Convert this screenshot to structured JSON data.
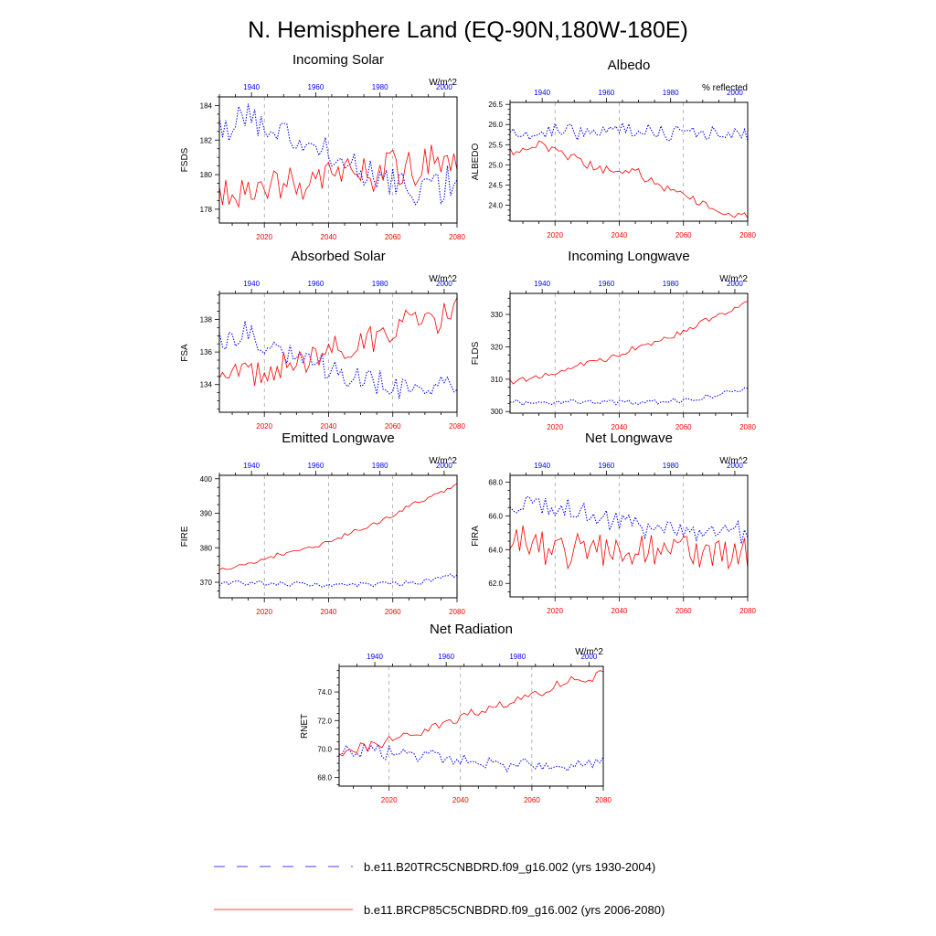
{
  "suptitle": "N. Hemisphere Land (EQ-90N,180W-180E)",
  "colors": {
    "historical": "#0000ff",
    "future": "#ff0000",
    "grid": "#888888",
    "axis": "#000000"
  },
  "legend": {
    "historical": "b.e11.B20TRC5CNBDRD.f09_g16.002 (yrs 1930-2004)",
    "future": "b.e11.BRCP85C5CNBDRD.f09_g16.002 (yrs 2006-2080)"
  },
  "chart_data": [
    {
      "type": "line",
      "title": "Incoming Solar",
      "units": "W/m^2",
      "ylabel": "FSDS",
      "ylim": [
        177.2,
        184.5
      ],
      "yticks": [
        178,
        180,
        182,
        184
      ],
      "ytick_labels": [
        "178",
        "180",
        "182",
        "184"
      ],
      "xlim_top": [
        1930,
        2004
      ],
      "xticks_top": [
        1940,
        1960,
        1980,
        2000
      ],
      "xlim_bottom": [
        2006,
        2080
      ],
      "xticks_bottom": [
        2020,
        2040,
        2060,
        2080
      ],
      "series": [
        {
          "name": "b.e11.B20TRC5CNBDRD.f09_g16.002",
          "axis": "top",
          "style": "dotted",
          "x_start": 1930,
          "anchors": [
            [
              1930,
              182.3
            ],
            [
              1937,
              183.8
            ],
            [
              1942,
              183.0
            ],
            [
              1950,
              182.6
            ],
            [
              1958,
              181.7
            ],
            [
              1966,
              180.8
            ],
            [
              1975,
              180.1
            ],
            [
              1985,
              179.6
            ],
            [
              1995,
              179.3
            ],
            [
              2004,
              179.4
            ]
          ],
          "amplitude": 0.9,
          "seed": 11
        },
        {
          "name": "b.e11.BRCP85C5CNBDRD.f09_g16.002",
          "axis": "bottom",
          "style": "solid",
          "x_start": 2006,
          "anchors": [
            [
              2006,
              179.3
            ],
            [
              2020,
              179.4
            ],
            [
              2030,
              179.3
            ],
            [
              2040,
              179.9
            ],
            [
              2050,
              180.1
            ],
            [
              2060,
              180.4
            ],
            [
              2070,
              180.7
            ],
            [
              2080,
              181.0
            ]
          ],
          "amplitude": 1.1,
          "seed": 12
        }
      ]
    },
    {
      "type": "line",
      "title": "Albedo",
      "units": "% reflected",
      "ylabel": "ALBEDO",
      "ylim": [
        23.6,
        26.55
      ],
      "yticks": [
        24.0,
        24.5,
        25.0,
        25.5,
        26.0,
        26.5
      ],
      "ytick_labels": [
        "24.0",
        "24.5",
        "25.0",
        "25.5",
        "26.0",
        "26.5"
      ],
      "xlim_top": [
        1930,
        2004
      ],
      "xticks_top": [
        1940,
        1960,
        1980,
        2000
      ],
      "xlim_bottom": [
        2006,
        2080
      ],
      "xticks_bottom": [
        2020,
        2040,
        2060,
        2080
      ],
      "series": [
        {
          "name": "b.e11.B20TRC5CNBDRD.f09_g16.002",
          "axis": "top",
          "style": "dotted",
          "x_start": 1930,
          "anchors": [
            [
              1930,
              25.8
            ],
            [
              1945,
              25.8
            ],
            [
              1960,
              25.9
            ],
            [
              1975,
              25.8
            ],
            [
              1990,
              25.8
            ],
            [
              2004,
              25.7
            ]
          ],
          "amplitude": 0.18,
          "seed": 21
        },
        {
          "name": "b.e11.BRCP85C5CNBDRD.f09_g16.002",
          "axis": "bottom",
          "style": "solid",
          "x_start": 2006,
          "anchors": [
            [
              2006,
              25.3
            ],
            [
              2015,
              25.5
            ],
            [
              2025,
              25.2
            ],
            [
              2035,
              24.9
            ],
            [
              2045,
              24.8
            ],
            [
              2055,
              24.4
            ],
            [
              2065,
              24.1
            ],
            [
              2072,
              23.9
            ],
            [
              2080,
              23.7
            ]
          ],
          "amplitude": 0.12,
          "seed": 22
        }
      ]
    },
    {
      "type": "line",
      "title": "Absorbed Solar",
      "units": "W/m^2",
      "ylabel": "FSA",
      "ylim": [
        132.3,
        139.6
      ],
      "yticks": [
        134,
        136,
        138
      ],
      "ytick_labels": [
        "134",
        "136",
        "138"
      ],
      "xlim_top": [
        1930,
        2004
      ],
      "xticks_top": [
        1940,
        1960,
        1980,
        2000
      ],
      "xlim_bottom": [
        2006,
        2080
      ],
      "xticks_bottom": [
        2020,
        2040,
        2060,
        2080
      ],
      "series": [
        {
          "name": "b.e11.B20TRC5CNBDRD.f09_g16.002",
          "axis": "top",
          "style": "dotted",
          "x_start": 1930,
          "anchors": [
            [
              1930,
              136.5
            ],
            [
              1937,
              137.3
            ],
            [
              1945,
              136.4
            ],
            [
              1955,
              135.7
            ],
            [
              1965,
              135.0
            ],
            [
              1975,
              134.3
            ],
            [
              1985,
              133.9
            ],
            [
              1995,
              133.7
            ],
            [
              2004,
              133.6
            ]
          ],
          "amplitude": 0.7,
          "seed": 31
        },
        {
          "name": "b.e11.BRCP85C5CNBDRD.f09_g16.002",
          "axis": "bottom",
          "style": "solid",
          "x_start": 2006,
          "anchors": [
            [
              2006,
              134.5
            ],
            [
              2015,
              134.5
            ],
            [
              2025,
              135.0
            ],
            [
              2035,
              135.6
            ],
            [
              2045,
              136.3
            ],
            [
              2055,
              137.0
            ],
            [
              2065,
              137.7
            ],
            [
              2075,
              138.1
            ],
            [
              2080,
              138.9
            ]
          ],
          "amplitude": 0.8,
          "seed": 32
        }
      ]
    },
    {
      "type": "line",
      "title": "Incoming Longwave",
      "units": "W/m^2",
      "ylabel": "FLDS",
      "ylim": [
        299.5,
        336.5
      ],
      "yticks": [
        300,
        310,
        320,
        330
      ],
      "ytick_labels": [
        "300",
        "310",
        "320",
        "330"
      ],
      "xlim_top": [
        1930,
        2004
      ],
      "xticks_top": [
        1940,
        1960,
        1980,
        2000
      ],
      "xlim_bottom": [
        2006,
        2080
      ],
      "xticks_bottom": [
        2020,
        2040,
        2060,
        2080
      ],
      "series": [
        {
          "name": "b.e11.B20TRC5CNBDRD.f09_g16.002",
          "axis": "top",
          "style": "dotted",
          "x_start": 1930,
          "anchors": [
            [
              1930,
              303.0
            ],
            [
              1950,
              302.9
            ],
            [
              1970,
              302.7
            ],
            [
              1985,
              303.6
            ],
            [
              1995,
              305.3
            ],
            [
              2004,
              307.3
            ]
          ],
          "amplitude": 0.8,
          "seed": 41
        },
        {
          "name": "b.e11.BRCP85C5CNBDRD.f09_g16.002",
          "axis": "bottom",
          "style": "solid",
          "x_start": 2006,
          "anchors": [
            [
              2006,
              309.0
            ],
            [
              2015,
              310.5
            ],
            [
              2025,
              313.5
            ],
            [
              2035,
              316.0
            ],
            [
              2045,
              319.5
            ],
            [
              2055,
              322.5
            ],
            [
              2065,
              327.0
            ],
            [
              2075,
              331.5
            ],
            [
              2080,
              334.5
            ]
          ],
          "amplitude": 0.9,
          "seed": 42
        }
      ]
    },
    {
      "type": "line",
      "title": "Emitted Longwave",
      "units": "W/m^2",
      "ylabel": "FIRE",
      "ylim": [
        365.5,
        401.0
      ],
      "yticks": [
        370,
        380,
        390,
        400
      ],
      "ytick_labels": [
        "370",
        "380",
        "390",
        "400"
      ],
      "xlim_top": [
        1930,
        2004
      ],
      "xticks_top": [
        1940,
        1960,
        1980,
        2000
      ],
      "xlim_bottom": [
        2006,
        2080
      ],
      "xticks_bottom": [
        2020,
        2040,
        2060,
        2080
      ],
      "series": [
        {
          "name": "b.e11.B20TRC5CNBDRD.f09_g16.002",
          "axis": "top",
          "style": "dotted",
          "x_start": 1930,
          "anchors": [
            [
              1930,
              369.8
            ],
            [
              1950,
              369.6
            ],
            [
              1965,
              368.9
            ],
            [
              1980,
              369.3
            ],
            [
              1992,
              370.0
            ],
            [
              2004,
              372.0
            ]
          ],
          "amplitude": 0.7,
          "seed": 51
        },
        {
          "name": "b.e11.BRCP85C5CNBDRD.f09_g16.002",
          "axis": "bottom",
          "style": "solid",
          "x_start": 2006,
          "anchors": [
            [
              2006,
              373.8
            ],
            [
              2015,
              375.2
            ],
            [
              2025,
              378.0
            ],
            [
              2035,
              380.2
            ],
            [
              2045,
              383.5
            ],
            [
              2055,
              387.0
            ],
            [
              2065,
              392.0
            ],
            [
              2075,
              395.8
            ],
            [
              2080,
              398.5
            ]
          ],
          "amplitude": 0.6,
          "seed": 52
        }
      ]
    },
    {
      "type": "line",
      "title": "Net Longwave",
      "units": "W/m^2",
      "ylabel": "FIRA",
      "ylim": [
        61.2,
        68.4
      ],
      "yticks": [
        62.0,
        64.0,
        66.0,
        68.0
      ],
      "ytick_labels": [
        "62.0",
        "64.0",
        "66.0",
        "68.0"
      ],
      "xlim_top": [
        1930,
        2004
      ],
      "xticks_top": [
        1940,
        1960,
        1980,
        2000
      ],
      "xlim_bottom": [
        2006,
        2080
      ],
      "xticks_bottom": [
        2020,
        2040,
        2060,
        2080
      ],
      "series": [
        {
          "name": "b.e11.B20TRC5CNBDRD.f09_g16.002",
          "axis": "top",
          "style": "dotted",
          "x_start": 1930,
          "anchors": [
            [
              1930,
              66.3
            ],
            [
              1938,
              67.0
            ],
            [
              1948,
              66.4
            ],
            [
              1958,
              65.8
            ],
            [
              1968,
              65.4
            ],
            [
              1978,
              65.1
            ],
            [
              1988,
              65.0
            ],
            [
              1996,
              65.2
            ],
            [
              2004,
              64.8
            ]
          ],
          "amplitude": 0.6,
          "seed": 61
        },
        {
          "name": "b.e11.BRCP85C5CNBDRD.f09_g16.002",
          "axis": "bottom",
          "style": "solid",
          "x_start": 2006,
          "anchors": [
            [
              2006,
              64.8
            ],
            [
              2020,
              64.2
            ],
            [
              2035,
              63.8
            ],
            [
              2050,
              63.9
            ],
            [
              2065,
              64.0
            ],
            [
              2080,
              63.8
            ]
          ],
          "amplitude": 1.0,
          "seed": 62
        }
      ]
    },
    {
      "type": "line",
      "title": "Net Radiation",
      "units": "W/m^2",
      "ylabel": "RNET",
      "ylim": [
        67.4,
        75.8
      ],
      "yticks": [
        68.0,
        70.0,
        72.0,
        74.0
      ],
      "ytick_labels": [
        "68.0",
        "70.0",
        "72.0",
        "74.0"
      ],
      "xlim_top": [
        1930,
        2004
      ],
      "xticks_top": [
        1940,
        1960,
        1980,
        2000
      ],
      "xlim_bottom": [
        2006,
        2080
      ],
      "xticks_bottom": [
        2020,
        2040,
        2060,
        2080
      ],
      "series": [
        {
          "name": "b.e11.B20TRC5CNBDRD.f09_g16.002",
          "axis": "top",
          "style": "dotted",
          "x_start": 1930,
          "anchors": [
            [
              1930,
              69.9
            ],
            [
              1945,
              69.8
            ],
            [
              1960,
              69.4
            ],
            [
              1975,
              68.9
            ],
            [
              1990,
              68.8
            ],
            [
              2004,
              69.0
            ]
          ],
          "amplitude": 0.45,
          "seed": 71
        },
        {
          "name": "b.e11.BRCP85C5CNBDRD.f09_g16.002",
          "axis": "bottom",
          "style": "solid",
          "x_start": 2006,
          "anchors": [
            [
              2006,
              69.6
            ],
            [
              2020,
              70.6
            ],
            [
              2030,
              71.3
            ],
            [
              2040,
              72.2
            ],
            [
              2050,
              73.0
            ],
            [
              2060,
              73.8
            ],
            [
              2070,
              74.6
            ],
            [
              2080,
              75.4
            ]
          ],
          "amplitude": 0.35,
          "seed": 72
        }
      ]
    }
  ]
}
